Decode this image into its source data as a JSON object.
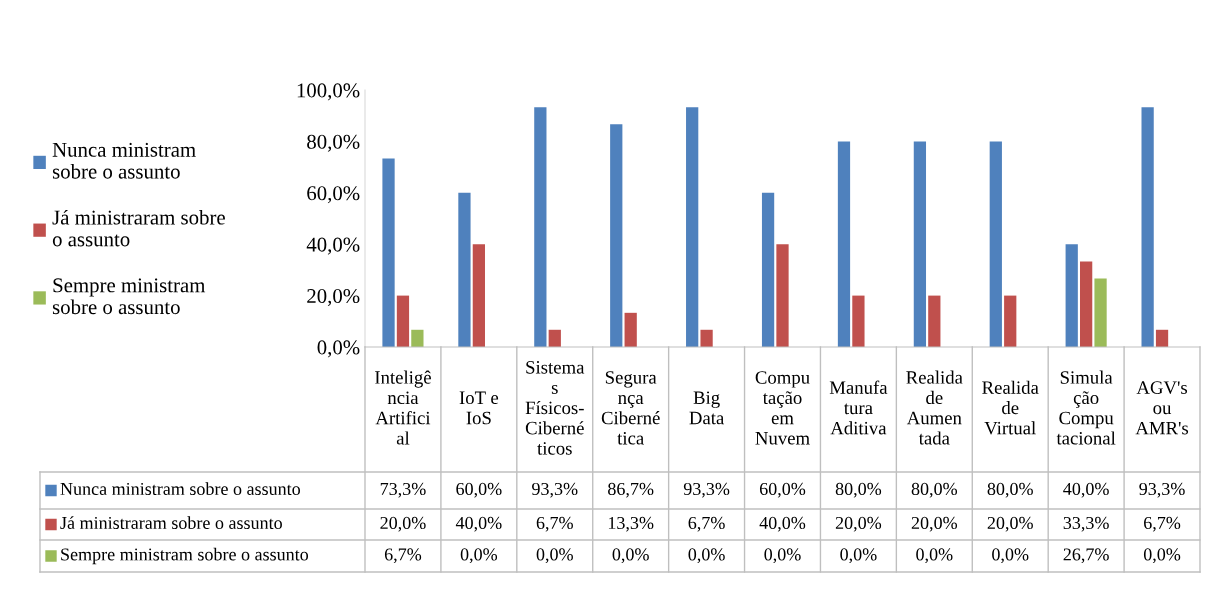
{
  "chart_data": {
    "type": "bar",
    "categories": [
      "Inteligê\nncia\nArtifici\nal",
      "IoT e\nIoS",
      "Sistema\ns\nFísicos-\nCiberné\nticos",
      "Segura\nnça\nCiberné\ntica",
      "Big\nData",
      "Compu\ntação\nem\nNuvem",
      "Manufa\ntura\nAditiva",
      "Realida\nde\nAumen\ntada",
      "Realida\nde\nVirtual",
      "Simula\nção\nCompu\ntacional",
      "AGV's\nou\nAMR's"
    ],
    "series": [
      {
        "name": "Nunca ministram\nsobre o assunto",
        "color": "#4f81bd",
        "values": [
          73.3,
          60.0,
          93.3,
          86.7,
          93.3,
          60.0,
          80.0,
          80.0,
          80.0,
          40.0,
          93.3
        ],
        "value_labels": [
          "73,3%",
          "60,0%",
          "93,3%",
          "86,7%",
          "93,3%",
          "60,0%",
          "80,0%",
          "80,0%",
          "80,0%",
          "40,0%",
          "93,3%"
        ]
      },
      {
        "name": "Já ministraram sobre\no assunto",
        "color": "#c0504d",
        "values": [
          20.0,
          40.0,
          6.7,
          13.3,
          6.7,
          40.0,
          20.0,
          20.0,
          20.0,
          33.3,
          6.7
        ],
        "value_labels": [
          "20,0%",
          "40,0%",
          "6,7%",
          "13,3%",
          "6,7%",
          "40,0%",
          "20,0%",
          "20,0%",
          "20,0%",
          "33,3%",
          "6,7%"
        ]
      },
      {
        "name": "Sempre ministram\nsobre o assunto",
        "color": "#9bbb59",
        "values": [
          6.7,
          0.0,
          0.0,
          0.0,
          0.0,
          0.0,
          0.0,
          0.0,
          0.0,
          26.7,
          0.0
        ],
        "value_labels": [
          "6,7%",
          "0,0%",
          "0,0%",
          "0,0%",
          "0,0%",
          "0,0%",
          "0,0%",
          "0,0%",
          "0,0%",
          "26,7%",
          "0,0%"
        ]
      }
    ],
    "ylim": [
      0,
      100
    ],
    "yticks": [
      {
        "value": 0,
        "label": "0,0%"
      },
      {
        "value": 20,
        "label": "20,0%"
      },
      {
        "value": 40,
        "label": "40,0%"
      },
      {
        "value": 60,
        "label": "60,0%"
      },
      {
        "value": 80,
        "label": "80,0%"
      },
      {
        "value": 100,
        "label": "100,0%"
      }
    ],
    "grid": false,
    "legend": "left"
  }
}
